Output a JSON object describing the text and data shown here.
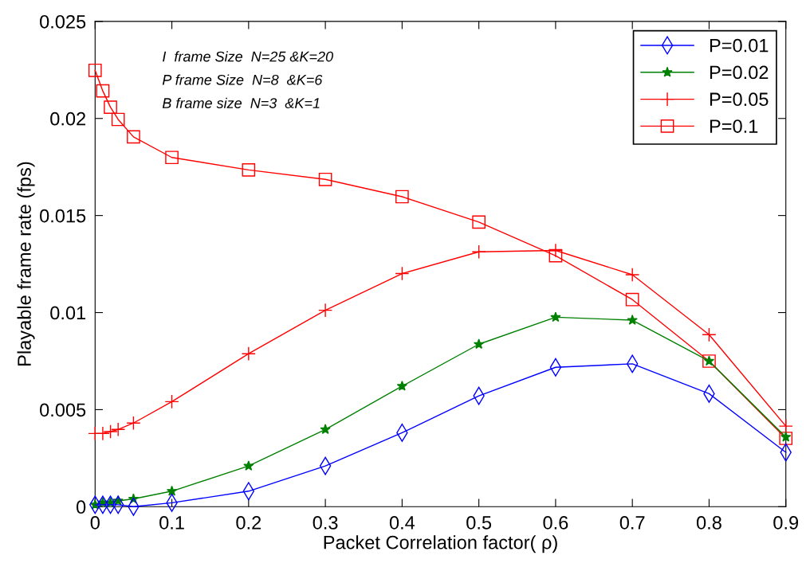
{
  "chart_data": {
    "type": "line",
    "xlabel": "Packet Correlation factor( ρ)",
    "ylabel": "Playable frame rate (fps)",
    "x": [
      0,
      0.01,
      0.02,
      0.03,
      0.05,
      0.1,
      0.2,
      0.3,
      0.4,
      0.5,
      0.6,
      0.7,
      0.8,
      0.9
    ],
    "series": [
      {
        "name": "P=0.01",
        "color": "#0000ff",
        "marker": "diamond",
        "values": [
          0.0001,
          0.0001,
          0.0001,
          0.0001,
          0.0,
          0.0002,
          0.0008,
          0.0021,
          0.00381,
          0.00571,
          0.00718,
          0.00736,
          0.00582,
          0.0028
        ]
      },
      {
        "name": "P=0.02",
        "color": "#008000",
        "marker": "star",
        "values": [
          0.0001,
          0.0002,
          0.0002,
          0.0003,
          0.0004,
          0.0008,
          0.0021,
          0.00398,
          0.00621,
          0.00837,
          0.00976,
          0.00961,
          0.0075,
          0.00359
        ]
      },
      {
        "name": "P=0.05",
        "color": "#ff0000",
        "marker": "cross",
        "values": [
          0.00377,
          0.00377,
          0.00387,
          0.00398,
          0.00431,
          0.00541,
          0.00788,
          0.01012,
          0.01201,
          0.01313,
          0.0132,
          0.01195,
          0.00886,
          0.00415
        ]
      },
      {
        "name": "P=0.1",
        "color": "#ff0000",
        "marker": "square",
        "values": [
          0.02248,
          0.02142,
          0.02058,
          0.01995,
          0.01905,
          0.01799,
          0.01735,
          0.01686,
          0.01597,
          0.01466,
          0.01293,
          0.01067,
          0.0075,
          0.00352
        ]
      }
    ],
    "xlim": [
      0,
      0.9
    ],
    "ylim": [
      0,
      0.025
    ],
    "xticks": [
      0,
      0.1,
      0.2,
      0.3,
      0.4,
      0.5,
      0.6,
      0.7,
      0.8,
      0.9
    ],
    "yticks": [
      0,
      0.005,
      0.01,
      0.015,
      0.02,
      0.025
    ],
    "annotations": [
      "I  frame Size  N=25 &K=20",
      "P frame Size  N=8  &K=6",
      "B frame size  N=3  &K=1"
    ],
    "legend": "top right",
    "grid": false,
    "line_style": "solid"
  }
}
